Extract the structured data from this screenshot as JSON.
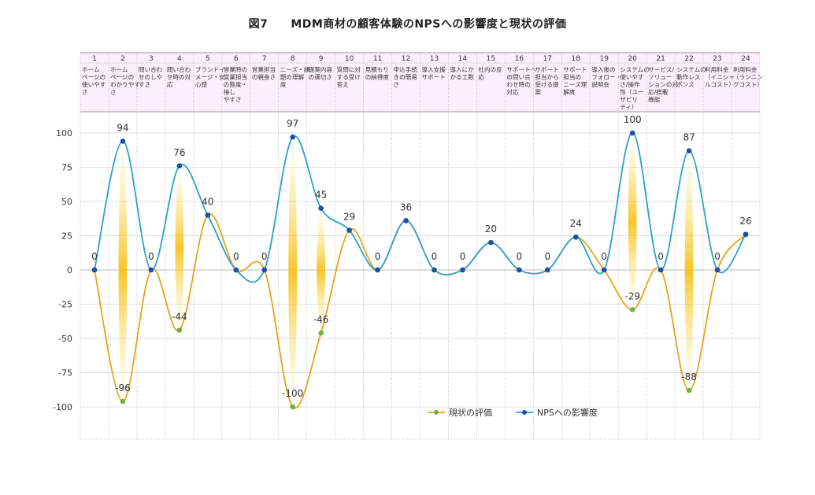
{
  "title": "図7　　MDM商材の顧客体験のNPSへの影響度と現状の評価",
  "chart_data": {
    "type": "line",
    "categories": [
      {
        "num": "1",
        "lines": [
          "ホーム",
          "ページの",
          "使いやす",
          "さ"
        ]
      },
      {
        "num": "2",
        "lines": [
          "ホーム",
          "ページの",
          "わかりやす",
          "さ"
        ]
      },
      {
        "num": "3",
        "lines": [
          "問い合わ",
          "せのしや",
          "すさ"
        ]
      },
      {
        "num": "4",
        "lines": [
          "問い合わ",
          "せ時の対",
          "応"
        ]
      },
      {
        "num": "5",
        "lines": [
          "ブランドイ",
          "メージ・安",
          "心感"
        ]
      },
      {
        "num": "6",
        "lines": [
          "営業時の",
          "営業担当",
          "の態度・",
          "接し",
          "やすさ"
        ]
      },
      {
        "num": "7",
        "lines": [
          "営業担当",
          "の親身さ"
        ]
      },
      {
        "num": "8",
        "lines": [
          "ニーズ・課",
          "題の理解",
          "度"
        ]
      },
      {
        "num": "9",
        "lines": [
          "提案内容",
          "の適切さ"
        ]
      },
      {
        "num": "10",
        "lines": [
          "質問に対",
          "する受け",
          "答え"
        ]
      },
      {
        "num": "11",
        "lines": [
          "見積もり",
          "の納得度"
        ]
      },
      {
        "num": "12",
        "lines": [
          "申込手続",
          "きの簡易",
          "さ"
        ]
      },
      {
        "num": "13",
        "lines": [
          "導入支援",
          "サポート"
        ]
      },
      {
        "num": "14",
        "lines": [
          "導入にか",
          "かる工数"
        ]
      },
      {
        "num": "15",
        "lines": [
          "社内の反",
          "応"
        ]
      },
      {
        "num": "16",
        "lines": [
          "サポートへ",
          "の問い合",
          "わせ時の",
          "対応"
        ]
      },
      {
        "num": "17",
        "lines": [
          "サポート",
          "担当から",
          "受ける提",
          "案"
        ]
      },
      {
        "num": "18",
        "lines": [
          "サポート",
          "担当の",
          "ニーズ理",
          "解度"
        ]
      },
      {
        "num": "19",
        "lines": [
          "導入後の",
          "フォロー・",
          "説明会"
        ]
      },
      {
        "num": "20",
        "lines": [
          "システムの",
          "使いやす",
          "さ/操作",
          "性（ユー",
          "ザビリ",
          "ティ）"
        ]
      },
      {
        "num": "21",
        "lines": [
          "サービス/",
          "ソリュー",
          "ションの対",
          "応/搭載",
          "機能"
        ]
      },
      {
        "num": "22",
        "lines": [
          "システムの",
          "動作レス",
          "ポンス"
        ]
      },
      {
        "num": "23",
        "lines": [
          "利用料金",
          "（イニシャ",
          "ルコスト）"
        ]
      },
      {
        "num": "24",
        "lines": [
          "利用料金",
          "（ランニン",
          "グコスト）"
        ]
      }
    ],
    "series": [
      {
        "name": "現状の評価",
        "color": "#E8A317",
        "marker_color": "#6FB23C",
        "values": [
          0,
          -96,
          0,
          -44,
          40,
          0,
          0,
          -100,
          -46,
          29,
          0,
          36,
          0,
          0,
          20,
          0,
          0,
          24,
          0,
          -29,
          0,
          -88,
          0,
          26
        ]
      },
      {
        "name": "NPSへの影響度",
        "color": "#29A3C9",
        "marker_color": "#1F4EA8",
        "values": [
          0,
          94,
          0,
          76,
          40,
          0,
          0,
          97,
          45,
          29,
          0,
          36,
          0,
          0,
          20,
          0,
          0,
          24,
          0,
          100,
          0,
          87,
          0,
          26
        ]
      }
    ],
    "yticks": [
      "100",
      "75",
      "50",
      "25",
      "0",
      "-25",
      "-50",
      "-75",
      "-100"
    ],
    "ylim": [
      -120,
      120
    ],
    "grid": true,
    "legend": "bottom-right"
  }
}
